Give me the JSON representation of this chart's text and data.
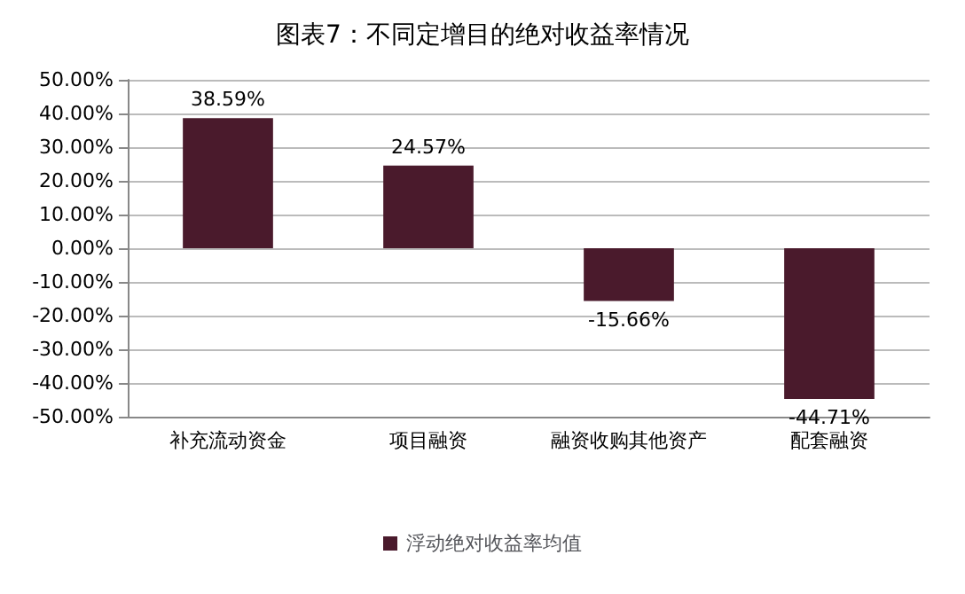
{
  "chart_data": {
    "type": "bar",
    "title": "图表7：不同定增目的绝对收益率情况",
    "categories": [
      "补充流动资金",
      "项目融资",
      "融资收购其他资产",
      "配套融资"
    ],
    "series": [
      {
        "name": "浮动绝对收益率均值",
        "color": "#4a1a2c",
        "values": [
          38.59,
          24.57,
          -15.66,
          -44.71
        ],
        "value_labels": [
          "38.59%",
          "24.57%",
          "-15.66%",
          "-44.71%"
        ]
      }
    ],
    "ylim": [
      -50,
      50
    ],
    "yticks": [
      {
        "value": -50,
        "label": "-50.00%"
      },
      {
        "value": -40,
        "label": "-40.00%"
      },
      {
        "value": -30,
        "label": "-30.00%"
      },
      {
        "value": -20,
        "label": "-20.00%"
      },
      {
        "value": -10,
        "label": "-10.00%"
      },
      {
        "value": 0,
        "label": "0.00%"
      },
      {
        "value": 10,
        "label": "10.00%"
      },
      {
        "value": 20,
        "label": "20.00%"
      },
      {
        "value": 30,
        "label": "30.00%"
      },
      {
        "value": 40,
        "label": "40.00%"
      },
      {
        "value": 50,
        "label": "50.00%"
      }
    ],
    "grid": "y",
    "legend": "bottom"
  }
}
